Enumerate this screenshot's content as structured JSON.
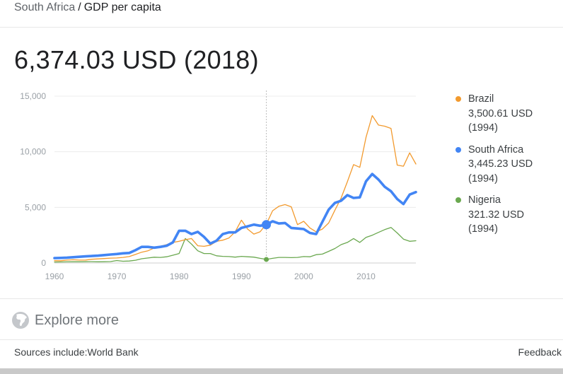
{
  "breadcrumb": {
    "parent": "South Africa",
    "separator": "/",
    "current": "GDP per capita"
  },
  "headline": "6,374.03 USD (2018)",
  "legend": [
    {
      "name": "Brazil",
      "value": "3,500.61 USD",
      "year": "(1994)",
      "color": "#f29a2e"
    },
    {
      "name": "South Africa",
      "value": "3,445.23 USD",
      "year": "(1994)",
      "color": "#4285f4"
    },
    {
      "name": "Nigeria",
      "value": "321.32 USD",
      "year": "(1994)",
      "color": "#6aa84f"
    }
  ],
  "explore": {
    "label": "Explore more",
    "icon": "globe-icon"
  },
  "footer": {
    "sources": "Sources include:World Bank",
    "feedback": "Feedback"
  },
  "chart_data": {
    "type": "line",
    "x_ticks": [
      1960,
      1970,
      1980,
      1990,
      2000,
      2010
    ],
    "y_ticks": [
      0,
      5000,
      10000,
      15000
    ],
    "y_tick_labels": [
      "0",
      "5,000",
      "10,000",
      "15,000"
    ],
    "xlim": [
      1960,
      2018
    ],
    "ylim": [
      0,
      15000
    ],
    "grid": "horizontal",
    "legend_position": "right",
    "highlight_year": 1994,
    "series": [
      {
        "name": "Brazil",
        "color": "#f29a2e",
        "x": [
          1960,
          1961,
          1962,
          1963,
          1964,
          1965,
          1966,
          1967,
          1968,
          1969,
          1970,
          1971,
          1972,
          1973,
          1974,
          1975,
          1976,
          1977,
          1978,
          1979,
          1980,
          1981,
          1982,
          1983,
          1984,
          1985,
          1986,
          1987,
          1988,
          1989,
          1990,
          1991,
          1992,
          1993,
          1994,
          1995,
          1996,
          1997,
          1998,
          1999,
          2000,
          2001,
          2002,
          2003,
          2004,
          2005,
          2006,
          2007,
          2008,
          2009,
          2010,
          2011,
          2012,
          2013,
          2014,
          2015,
          2016,
          2017,
          2018
        ],
        "values": [
          210,
          205,
          260,
          290,
          260,
          265,
          340,
          370,
          400,
          440,
          450,
          500,
          580,
          770,
          970,
          1100,
          1350,
          1500,
          1650,
          1850,
          1950,
          2100,
          2200,
          1550,
          1500,
          1600,
          1950,
          2050,
          2250,
          2800,
          3850,
          3050,
          2600,
          2800,
          3500,
          4700,
          5100,
          5250,
          5050,
          3450,
          3750,
          3150,
          2800,
          3050,
          3600,
          4750,
          5850,
          7300,
          8850,
          8600,
          11300,
          13250,
          12400,
          12300,
          12100,
          8800,
          8700,
          9900,
          8900
        ]
      },
      {
        "name": "South Africa",
        "color": "#4285f4",
        "x": [
          1960,
          1961,
          1962,
          1963,
          1964,
          1965,
          1966,
          1967,
          1968,
          1969,
          1970,
          1971,
          1972,
          1973,
          1974,
          1975,
          1976,
          1977,
          1978,
          1979,
          1980,
          1981,
          1982,
          1983,
          1984,
          1985,
          1986,
          1987,
          1988,
          1989,
          1990,
          1991,
          1992,
          1993,
          1994,
          1995,
          1996,
          1997,
          1998,
          1999,
          2000,
          2001,
          2002,
          2003,
          2004,
          2005,
          2006,
          2007,
          2008,
          2009,
          2010,
          2011,
          2012,
          2013,
          2014,
          2015,
          2016,
          2017,
          2018
        ],
        "values": [
          440,
          460,
          480,
          520,
          560,
          600,
          630,
          660,
          710,
          760,
          810,
          870,
          900,
          1150,
          1450,
          1450,
          1380,
          1450,
          1550,
          1850,
          2900,
          2900,
          2600,
          2800,
          2350,
          1750,
          2000,
          2600,
          2750,
          2750,
          3150,
          3300,
          3450,
          3350,
          3445,
          3750,
          3550,
          3600,
          3150,
          3100,
          3050,
          2700,
          2600,
          3700,
          4800,
          5400,
          5600,
          6100,
          5850,
          5900,
          7350,
          8000,
          7500,
          6850,
          6450,
          5750,
          5300,
          6150,
          6374
        ]
      },
      {
        "name": "Nigeria",
        "color": "#6aa84f",
        "x": [
          1960,
          1961,
          1962,
          1963,
          1964,
          1965,
          1966,
          1967,
          1968,
          1969,
          1970,
          1971,
          1972,
          1973,
          1974,
          1975,
          1976,
          1977,
          1978,
          1979,
          1980,
          1981,
          1982,
          1983,
          1984,
          1985,
          1986,
          1987,
          1988,
          1989,
          1990,
          1991,
          1992,
          1993,
          1994,
          1995,
          1996,
          1997,
          1998,
          1999,
          2000,
          2001,
          2002,
          2003,
          2004,
          2005,
          2006,
          2007,
          2008,
          2009,
          2010,
          2011,
          2012,
          2013,
          2014,
          2015,
          2016,
          2017,
          2018
        ],
        "values": [
          90,
          95,
          100,
          105,
          110,
          115,
          120,
          110,
          115,
          130,
          220,
          160,
          180,
          250,
          380,
          450,
          520,
          500,
          560,
          700,
          850,
          2200,
          1700,
          1100,
          850,
          850,
          650,
          600,
          580,
          530,
          600,
          560,
          530,
          420,
          321,
          420,
          500,
          500,
          480,
          500,
          580,
          560,
          750,
          800,
          1050,
          1300,
          1650,
          1850,
          2200,
          1850,
          2300,
          2500,
          2750,
          3000,
          3200,
          2700,
          2150,
          1950,
          2000
        ]
      }
    ]
  }
}
